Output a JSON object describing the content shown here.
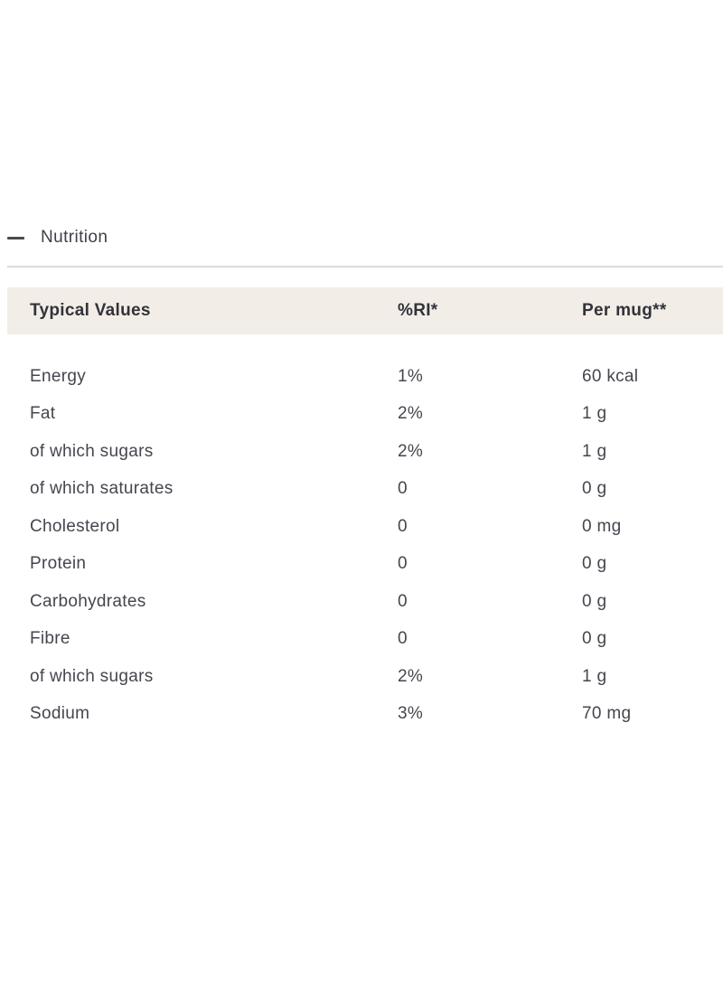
{
  "section": {
    "title": "Nutrition",
    "state": "expanded",
    "collapse_icon": "minus-icon"
  },
  "table": {
    "headers": [
      "Typical Values",
      "%RI*",
      "Per mug**"
    ],
    "rows": [
      {
        "label": "Energy",
        "ri": "1%",
        "per_mug": "60 kcal"
      },
      {
        "label": "Fat",
        "ri": "2%",
        "per_mug": "1 g"
      },
      {
        "label": "of which sugars",
        "ri": "2%",
        "per_mug": "1 g"
      },
      {
        "label": "of which saturates",
        "ri": "0",
        "per_mug": "0 g"
      },
      {
        "label": "Cholesterol",
        "ri": "0",
        "per_mug": "0 mg"
      },
      {
        "label": "Protein",
        "ri": "0",
        "per_mug": "0 g"
      },
      {
        "label": "Carbohydrates",
        "ri": "0",
        "per_mug": "0 g"
      },
      {
        "label": "Fibre",
        "ri": "0",
        "per_mug": "0 g"
      },
      {
        "label": "of which sugars",
        "ri": "2%",
        "per_mug": "1 g"
      },
      {
        "label": "Sodium",
        "ri": "3%",
        "per_mug": "70 mg"
      }
    ]
  },
  "colors": {
    "header_band": "#f2eee7",
    "divider": "#dbdbdb",
    "body_text": "#45454e",
    "heading_text": "#32323a"
  }
}
